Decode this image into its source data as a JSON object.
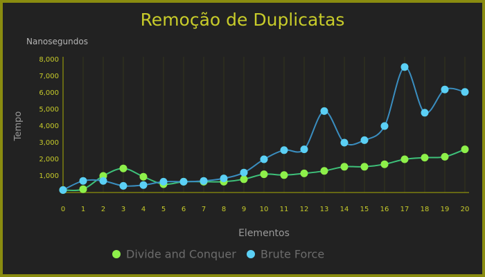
{
  "chart_data": {
    "type": "line",
    "title": "Remoção de Duplicatas",
    "unit_label": "Nanosegundos",
    "ylabel": "Tempo",
    "xlabel": "Elementos",
    "x": [
      0,
      1,
      2,
      3,
      4,
      5,
      6,
      7,
      8,
      9,
      10,
      11,
      12,
      13,
      14,
      15,
      16,
      17,
      18,
      19,
      20
    ],
    "y_ticks": [
      1000,
      2000,
      3000,
      4000,
      5000,
      6000,
      7000,
      8000
    ],
    "y_tick_labels": [
      "1,000",
      "2,000",
      "3,000",
      "4,000",
      "5,000",
      "6,000",
      "7,000",
      "8,000"
    ],
    "ylim": [
      0,
      8000
    ],
    "grid": "vertical",
    "legend_position": "bottom",
    "series": [
      {
        "name": "Divide and Conquer",
        "color": "#8ef04a",
        "line_color": "#3ec27a",
        "values": [
          150,
          200,
          1000,
          1450,
          950,
          500,
          650,
          650,
          650,
          800,
          1100,
          1050,
          1150,
          1300,
          1550,
          1550,
          1700,
          2000,
          2100,
          2150,
          2600
        ]
      },
      {
        "name": "Brute Force",
        "color": "#5bd0f5",
        "line_color": "#3a8ec0",
        "values": [
          150,
          700,
          700,
          400,
          450,
          650,
          650,
          700,
          850,
          1200,
          2000,
          2550,
          2600,
          4900,
          3000,
          3150,
          4000,
          7550,
          4800,
          6200,
          6050
        ]
      }
    ]
  }
}
